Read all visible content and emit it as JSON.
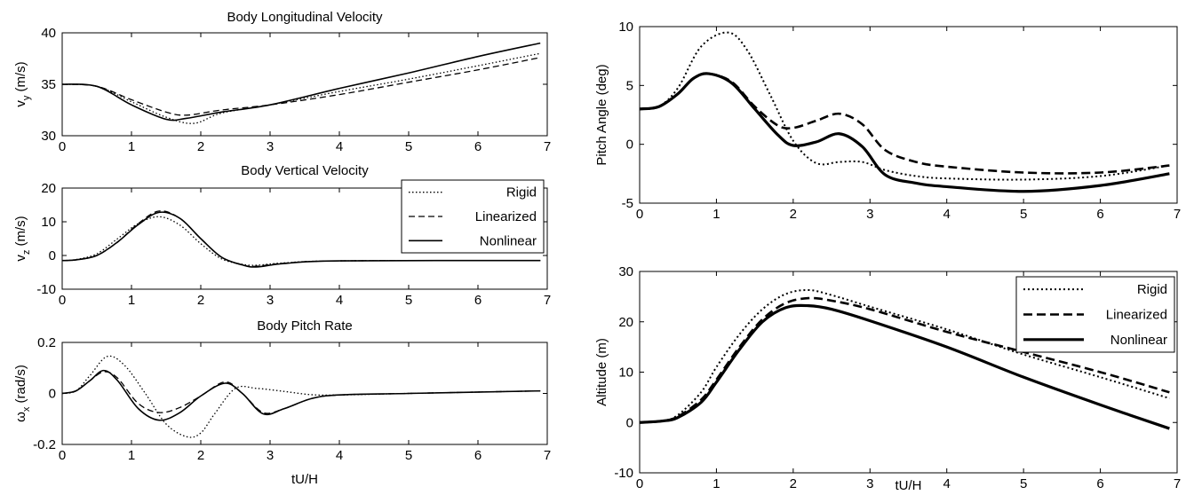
{
  "chart_data": [
    {
      "type": "line",
      "title": "Body Longitudinal Velocity",
      "xlabel": "",
      "ylabel": "v_y (m/s)",
      "ylabel_main": "v",
      "ylabel_sub": "y",
      "ylabel_unit": " (m/s)",
      "xlim": [
        0,
        7
      ],
      "ylim": [
        30,
        40
      ],
      "xticks": [
        0,
        1,
        2,
        3,
        4,
        5,
        6,
        7
      ],
      "yticks": [
        30,
        35,
        40
      ],
      "grid": false,
      "series": [
        {
          "style": "dotted",
          "x": [
            0,
            0.5,
            1.0,
            1.5,
            1.9,
            2.3,
            3.0,
            4.0,
            5.0,
            6.0,
            6.9
          ],
          "y": [
            35,
            34.8,
            33.3,
            31.8,
            31.2,
            32.2,
            33.0,
            34.3,
            35.5,
            36.8,
            38.0
          ]
        },
        {
          "style": "dashed",
          "x": [
            0,
            0.5,
            1.0,
            1.5,
            1.8,
            2.3,
            3.0,
            4.0,
            5.0,
            6.0,
            6.9
          ],
          "y": [
            35,
            34.8,
            33.5,
            32.3,
            32.0,
            32.5,
            33.0,
            34.0,
            35.2,
            36.4,
            37.6
          ]
        },
        {
          "style": "solid",
          "x": [
            0,
            0.5,
            1.0,
            1.5,
            1.8,
            2.3,
            3.0,
            4.0,
            5.0,
            6.0,
            6.9
          ],
          "y": [
            35,
            34.8,
            33.0,
            31.6,
            31.7,
            32.3,
            33.0,
            34.6,
            36.1,
            37.7,
            39.0
          ]
        }
      ]
    },
    {
      "type": "line",
      "title": "Body Vertical Velocity",
      "xlabel": "",
      "ylabel": "v_z (m/s)",
      "ylabel_main": "v",
      "ylabel_sub": "z",
      "ylabel_unit": " (m/s)",
      "xlim": [
        0,
        7
      ],
      "ylim": [
        -10,
        20
      ],
      "xticks": [
        0,
        1,
        2,
        3,
        4,
        5,
        6,
        7
      ],
      "yticks": [
        -10,
        0,
        10,
        20
      ],
      "grid": false,
      "legend": {
        "position": "top-right",
        "entries": [
          "Rigid",
          "Linearized",
          "Nonlinear"
        ]
      },
      "series": [
        {
          "name": "Rigid",
          "style": "dotted",
          "x": [
            0,
            0.2,
            0.5,
            0.8,
            1.1,
            1.4,
            1.7,
            2.0,
            2.3,
            2.6,
            2.8,
            3.2,
            4.0,
            6.9
          ],
          "y": [
            -1.5,
            -1.2,
            0.5,
            5.0,
            9.5,
            11.5,
            9.0,
            3.5,
            -1.0,
            -2.6,
            -2.9,
            -2.2,
            -1.6,
            -1.5
          ]
        },
        {
          "name": "Linearized",
          "style": "dashed",
          "x": [
            0,
            0.2,
            0.5,
            0.8,
            1.1,
            1.4,
            1.7,
            2.0,
            2.3,
            2.6,
            2.8,
            3.2,
            4.0,
            6.9
          ],
          "y": [
            -1.5,
            -1.3,
            0.0,
            4.0,
            9.5,
            13.2,
            11.0,
            5.0,
            -0.5,
            -2.8,
            -3.2,
            -2.3,
            -1.6,
            -1.5
          ]
        },
        {
          "name": "Nonlinear",
          "style": "solid",
          "x": [
            0,
            0.2,
            0.5,
            0.8,
            1.1,
            1.4,
            1.7,
            2.0,
            2.3,
            2.6,
            2.8,
            3.2,
            4.0,
            6.9
          ],
          "y": [
            -1.5,
            -1.3,
            0.0,
            4.0,
            9.2,
            12.8,
            11.0,
            5.0,
            -0.5,
            -2.8,
            -3.4,
            -2.4,
            -1.6,
            -1.5
          ]
        }
      ]
    },
    {
      "type": "line",
      "title": "Body Pitch Rate",
      "xlabel": "tU/H",
      "ylabel": "ω_x (rad/s)",
      "ylabel_main": "ω",
      "ylabel_sub": "x",
      "ylabel_unit": " (rad/s)",
      "xlim": [
        0,
        7
      ],
      "ylim": [
        -0.2,
        0.2
      ],
      "xticks": [
        0,
        1,
        2,
        3,
        4,
        5,
        6,
        7
      ],
      "yticks": [
        -0.2,
        0,
        0.2
      ],
      "ytick_labels": [
        "-0.2",
        "0",
        "0.2"
      ],
      "grid": false,
      "series": [
        {
          "style": "dotted",
          "x": [
            0,
            0.2,
            0.4,
            0.65,
            0.9,
            1.2,
            1.5,
            1.8,
            2.0,
            2.2,
            2.5,
            2.8,
            3.2,
            3.6,
            4.0,
            5.0,
            6.9
          ],
          "y": [
            0,
            0.01,
            0.07,
            0.145,
            0.11,
            0.0,
            -0.12,
            -0.17,
            -0.155,
            -0.08,
            0.02,
            0.02,
            0.008,
            -0.005,
            -0.006,
            0.0,
            0.01
          ]
        },
        {
          "style": "dashed",
          "x": [
            0,
            0.2,
            0.4,
            0.6,
            0.8,
            1.1,
            1.4,
            1.7,
            2.0,
            2.35,
            2.6,
            2.9,
            3.2,
            3.6,
            4.0,
            5.0,
            6.9
          ],
          "y": [
            0,
            0.01,
            0.05,
            0.085,
            0.06,
            -0.04,
            -0.075,
            -0.055,
            -0.01,
            0.045,
            0.0,
            -0.075,
            -0.06,
            -0.02,
            -0.006,
            0.0,
            0.01
          ]
        },
        {
          "style": "solid",
          "x": [
            0,
            0.2,
            0.4,
            0.6,
            0.8,
            1.1,
            1.4,
            1.7,
            2.0,
            2.35,
            2.6,
            2.9,
            3.2,
            3.6,
            4.0,
            5.0,
            6.9
          ],
          "y": [
            0,
            0.01,
            0.05,
            0.09,
            0.05,
            -0.06,
            -0.105,
            -0.075,
            -0.01,
            0.04,
            0.0,
            -0.08,
            -0.06,
            -0.02,
            -0.006,
            0.0,
            0.01
          ]
        }
      ]
    },
    {
      "type": "line",
      "title": "",
      "xlabel": "",
      "ylabel": "Pitch Angle (deg)",
      "xlim": [
        0,
        7
      ],
      "ylim": [
        -5,
        10
      ],
      "xticks": [
        0,
        1,
        2,
        3,
        4,
        5,
        6,
        7
      ],
      "yticks": [
        -5,
        0,
        5,
        10
      ],
      "grid": false,
      "series": [
        {
          "style": "dotted",
          "x": [
            0,
            0.25,
            0.5,
            0.8,
            1.15,
            1.4,
            1.7,
            2.0,
            2.3,
            2.6,
            2.9,
            3.2,
            3.6,
            4.0,
            5.0,
            6.0,
            6.9
          ],
          "y": [
            3,
            3.2,
            4.8,
            8.3,
            9.5,
            8.0,
            4.2,
            0.3,
            -1.6,
            -1.5,
            -1.5,
            -2.2,
            -2.7,
            -2.9,
            -3.0,
            -2.7,
            -1.8
          ]
        },
        {
          "style": "dashed",
          "x": [
            0,
            0.25,
            0.5,
            0.7,
            0.9,
            1.2,
            1.5,
            1.8,
            2.0,
            2.3,
            2.6,
            2.9,
            3.2,
            3.6,
            4.0,
            5.0,
            6.0,
            6.9
          ],
          "y": [
            3,
            3.2,
            4.3,
            5.6,
            6.0,
            5.3,
            3.2,
            1.6,
            1.4,
            2.0,
            2.6,
            1.7,
            -0.5,
            -1.5,
            -1.9,
            -2.4,
            -2.4,
            -1.8
          ]
        },
        {
          "style": "solid",
          "x": [
            0,
            0.25,
            0.5,
            0.7,
            0.9,
            1.2,
            1.5,
            1.8,
            2.0,
            2.3,
            2.6,
            2.9,
            3.2,
            3.6,
            4.0,
            5.0,
            6.0,
            6.9
          ],
          "y": [
            3,
            3.2,
            4.3,
            5.6,
            6.0,
            5.2,
            3.0,
            0.8,
            -0.1,
            0.2,
            0.9,
            -0.2,
            -2.6,
            -3.3,
            -3.6,
            -4.0,
            -3.5,
            -2.5
          ]
        }
      ]
    },
    {
      "type": "line",
      "title": "",
      "xlabel": "tU/H",
      "ylabel": "Altitude (m)",
      "xlim": [
        0,
        7
      ],
      "ylim": [
        -10,
        30
      ],
      "xticks": [
        0,
        1,
        2,
        3,
        4,
        5,
        6,
        7
      ],
      "yticks": [
        -10,
        0,
        10,
        20,
        30
      ],
      "grid": false,
      "legend": {
        "position": "top-right",
        "entries": [
          "Rigid",
          "Linearized",
          "Nonlinear"
        ]
      },
      "series": [
        {
          "name": "Rigid",
          "style": "dotted",
          "x": [
            0,
            0.3,
            0.5,
            0.8,
            1.0,
            1.3,
            1.6,
            1.9,
            2.2,
            2.5,
            3.0,
            4.0,
            5.0,
            6.0,
            6.9
          ],
          "y": [
            0,
            0.3,
            1.5,
            6.0,
            11.0,
            17.5,
            22.5,
            25.5,
            26.3,
            25.3,
            23.0,
            18.5,
            13.5,
            9.0,
            4.8
          ]
        },
        {
          "name": "Linearized",
          "style": "dashed",
          "x": [
            0,
            0.3,
            0.5,
            0.8,
            1.0,
            1.3,
            1.6,
            1.9,
            2.2,
            2.5,
            3.0,
            4.0,
            5.0,
            6.0,
            6.9
          ],
          "y": [
            0,
            0.3,
            1.2,
            4.5,
            8.5,
            15.0,
            20.5,
            23.7,
            24.7,
            24.2,
            22.5,
            18.0,
            14.0,
            10.0,
            6.0
          ]
        },
        {
          "name": "Nonlinear",
          "style": "solid",
          "x": [
            0,
            0.3,
            0.5,
            0.8,
            1.0,
            1.3,
            1.6,
            1.9,
            2.2,
            2.5,
            3.0,
            4.0,
            5.0,
            6.0,
            6.9
          ],
          "y": [
            0,
            0.3,
            1.0,
            4.0,
            8.0,
            14.5,
            20.0,
            22.8,
            23.2,
            22.5,
            20.2,
            15.0,
            9.0,
            3.5,
            -1.2
          ]
        }
      ]
    }
  ]
}
